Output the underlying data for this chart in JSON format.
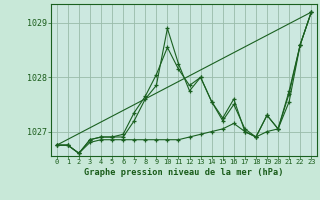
{
  "title": "Graphe pression niveau de la mer (hPa)",
  "bg_color": "#c8e8d8",
  "plot_bg_color": "#cce8e0",
  "line_color": "#1a6020",
  "grid_color": "#99bbaa",
  "x_ticks": [
    0,
    1,
    2,
    3,
    4,
    5,
    6,
    7,
    8,
    9,
    10,
    11,
    12,
    13,
    14,
    15,
    16,
    17,
    18,
    19,
    20,
    21,
    22,
    23
  ],
  "ylim": [
    1026.55,
    1029.35
  ],
  "yticks": [
    1027,
    1028,
    1029
  ],
  "series1": [
    1026.75,
    1026.75,
    1026.6,
    1026.8,
    1026.85,
    1026.85,
    1026.85,
    1026.85,
    1026.85,
    1026.85,
    1026.85,
    1026.85,
    1026.9,
    1026.95,
    1027.0,
    1027.05,
    1027.15,
    1027.0,
    1026.9,
    1027.0,
    1027.05,
    1027.55,
    1028.6,
    1029.2
  ],
  "series2": [
    1026.75,
    1026.75,
    1026.6,
    1026.85,
    1026.9,
    1026.9,
    1026.95,
    1027.35,
    1027.65,
    1028.05,
    1028.55,
    1028.15,
    1027.85,
    1028.0,
    1027.55,
    1027.25,
    1027.6,
    1027.0,
    1026.9,
    1027.3,
    1027.05,
    1027.75,
    1028.6,
    1029.2
  ],
  "series3": [
    1026.75,
    1026.75,
    1026.6,
    1026.85,
    1026.9,
    1026.9,
    1026.9,
    1027.2,
    1027.6,
    1027.85,
    1028.9,
    1028.25,
    1027.75,
    1028.0,
    1027.55,
    1027.2,
    1027.5,
    1027.05,
    1026.9,
    1027.3,
    1027.05,
    1027.7,
    1028.6,
    1029.2
  ]
}
